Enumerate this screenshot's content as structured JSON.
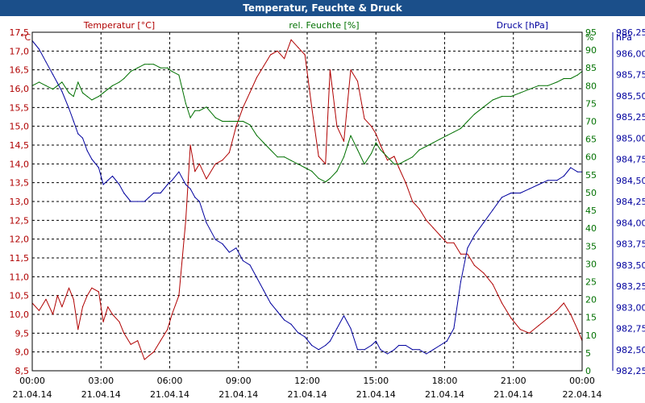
{
  "window": {
    "title": "Temperatur, Feuchte & Druck"
  },
  "chart_data": {
    "type": "line",
    "title": "Temperatur, Feuchte & Druck",
    "colors": {
      "temperature": "#b00000",
      "humidity": "#007000",
      "pressure": "#00009e",
      "grid": "#000000",
      "titlebar": "#1b4f8a"
    },
    "x_ticks": [
      {
        "time": "00:00",
        "date": "21.04.14"
      },
      {
        "time": "03:00",
        "date": "21.04.14"
      },
      {
        "time": "06:00",
        "date": "21.04.14"
      },
      {
        "time": "09:00",
        "date": "21.04.14"
      },
      {
        "time": "12:00",
        "date": "21.04.14"
      },
      {
        "time": "15:00",
        "date": "21.04.14"
      },
      {
        "time": "18:00",
        "date": "21.04.14"
      },
      {
        "time": "21:00",
        "date": "21.04.14"
      },
      {
        "time": "00:00",
        "date": "22.04.14"
      }
    ],
    "xlim_hours": [
      0,
      24
    ],
    "axes": {
      "temperature": {
        "label": "Temperatur [°C]",
        "unit": "°C",
        "ylim": [
          8.5,
          17.5
        ],
        "ticks": [
          "8,5",
          "9,0",
          "9,5",
          "10,0",
          "10,5",
          "11,0",
          "11,5",
          "12,0",
          "12,5",
          "13,0",
          "13,5",
          "14,0",
          "14,5",
          "15,0",
          "15,5",
          "16,0",
          "16,5",
          "17,0",
          "17,5"
        ]
      },
      "humidity": {
        "label": "rel. Feuchte [%]",
        "unit": "%",
        "ylim": [
          0,
          95
        ],
        "ticks": [
          "0",
          "5",
          "10",
          "15",
          "20",
          "25",
          "30",
          "35",
          "40",
          "45",
          "50",
          "55",
          "60",
          "65",
          "70",
          "75",
          "80",
          "85",
          "90",
          "95"
        ]
      },
      "pressure": {
        "label": "Druck [hPa]",
        "unit": "hPa",
        "ylim": [
          982.25,
          986.25
        ],
        "ticks": [
          "982,25",
          "982,50",
          "982,75",
          "983,00",
          "983,25",
          "983,50",
          "983,75",
          "984,00",
          "984,25",
          "984,50",
          "984,75",
          "985,00",
          "985,25",
          "985,50",
          "985,75",
          "986,00",
          "986,25"
        ]
      }
    },
    "series": [
      {
        "name": "Temperatur [°C]",
        "axis": "temperature",
        "x": [
          0,
          0.3,
          0.6,
          0.9,
          1.1,
          1.3,
          1.6,
          1.8,
          2.0,
          2.2,
          2.4,
          2.6,
          2.9,
          3.1,
          3.3,
          3.5,
          3.8,
          4.0,
          4.3,
          4.6,
          4.9,
          5.1,
          5.3,
          5.6,
          5.9,
          6.1,
          6.4,
          6.7,
          6.9,
          7.1,
          7.3,
          7.6,
          8.0,
          8.3,
          8.6,
          8.9,
          9.2,
          9.5,
          9.8,
          10.1,
          10.4,
          10.7,
          11.0,
          11.3,
          11.6,
          11.9,
          12.2,
          12.5,
          12.8,
          13.0,
          13.3,
          13.6,
          13.9,
          14.2,
          14.5,
          14.8,
          15.0,
          15.2,
          15.5,
          15.8,
          16.0,
          16.3,
          16.6,
          16.9,
          17.2,
          17.5,
          17.8,
          18.1,
          18.4,
          18.7,
          19.0,
          19.3,
          19.7,
          20.1,
          20.5,
          20.9,
          21.3,
          21.7,
          22.1,
          22.5,
          22.9,
          23.2,
          23.5,
          23.8,
          24.0
        ],
        "values": [
          10.3,
          10.1,
          10.4,
          10.0,
          10.5,
          10.2,
          10.7,
          10.4,
          9.6,
          10.2,
          10.5,
          10.7,
          10.6,
          9.8,
          10.2,
          10.0,
          9.8,
          9.5,
          9.2,
          9.3,
          8.8,
          8.9,
          9.0,
          9.3,
          9.6,
          10.0,
          10.5,
          12.5,
          14.5,
          13.8,
          14.0,
          13.6,
          14.0,
          14.1,
          14.3,
          15.0,
          15.5,
          15.9,
          16.3,
          16.6,
          16.9,
          17.0,
          16.8,
          17.3,
          17.1,
          16.9,
          15.5,
          14.2,
          14.0,
          16.5,
          15.0,
          14.6,
          16.5,
          16.2,
          15.2,
          15.0,
          14.8,
          14.5,
          14.1,
          14.2,
          13.9,
          13.5,
          13.0,
          12.8,
          12.5,
          12.3,
          12.1,
          11.9,
          11.9,
          11.6,
          11.6,
          11.3,
          11.1,
          10.8,
          10.3,
          9.9,
          9.6,
          9.5,
          9.7,
          9.9,
          10.1,
          10.3,
          10.0,
          9.6,
          9.3
        ]
      },
      {
        "name": "rel. Feuchte [%]",
        "axis": "humidity",
        "x": [
          0,
          0.3,
          0.6,
          0.9,
          1.1,
          1.3,
          1.6,
          1.8,
          2.0,
          2.2,
          2.4,
          2.6,
          2.9,
          3.1,
          3.3,
          3.5,
          3.8,
          4.0,
          4.3,
          4.6,
          4.9,
          5.1,
          5.3,
          5.6,
          5.9,
          6.1,
          6.4,
          6.7,
          6.9,
          7.1,
          7.3,
          7.6,
          8.0,
          8.3,
          8.6,
          8.9,
          9.2,
          9.5,
          9.8,
          10.1,
          10.4,
          10.7,
          11.0,
          11.3,
          11.6,
          11.9,
          12.2,
          12.5,
          12.8,
          13.0,
          13.3,
          13.6,
          13.9,
          14.2,
          14.5,
          14.8,
          15.0,
          15.2,
          15.5,
          15.8,
          16.0,
          16.3,
          16.6,
          16.9,
          17.2,
          17.5,
          17.8,
          18.1,
          18.4,
          18.7,
          19.0,
          19.3,
          19.7,
          20.1,
          20.5,
          20.9,
          21.3,
          21.7,
          22.1,
          22.5,
          22.9,
          23.2,
          23.5,
          23.8,
          24.0
        ],
        "values": [
          80,
          81,
          80,
          79,
          80,
          81,
          78,
          77,
          81,
          78,
          77,
          76,
          77,
          78,
          79,
          80,
          81,
          82,
          84,
          85,
          86,
          86,
          86,
          85,
          85,
          84,
          83,
          75,
          71,
          73,
          73,
          74,
          71,
          70,
          70,
          70,
          70,
          69,
          66,
          64,
          62,
          60,
          60,
          59,
          58,
          57,
          56,
          54,
          53,
          54,
          56,
          60,
          66,
          62,
          58,
          61,
          64,
          62,
          60,
          58,
          58,
          59,
          60,
          62,
          63,
          64,
          65,
          66,
          67,
          68,
          70,
          72,
          74,
          76,
          77,
          77,
          78,
          79,
          80,
          80,
          81,
          82,
          82,
          83,
          84
        ]
      },
      {
        "name": "Druck [hPa]",
        "axis": "pressure",
        "x": [
          0,
          0.3,
          0.6,
          0.9,
          1.1,
          1.3,
          1.6,
          1.8,
          2.0,
          2.2,
          2.4,
          2.6,
          2.9,
          3.1,
          3.3,
          3.5,
          3.8,
          4.0,
          4.3,
          4.6,
          4.9,
          5.1,
          5.3,
          5.6,
          5.9,
          6.1,
          6.4,
          6.7,
          6.9,
          7.1,
          7.3,
          7.6,
          8.0,
          8.3,
          8.6,
          8.9,
          9.2,
          9.5,
          9.8,
          10.1,
          10.4,
          10.7,
          11.0,
          11.3,
          11.6,
          11.9,
          12.2,
          12.5,
          12.8,
          13.0,
          13.3,
          13.6,
          13.9,
          14.2,
          14.5,
          14.8,
          15.0,
          15.2,
          15.5,
          15.8,
          16.0,
          16.3,
          16.6,
          16.9,
          17.2,
          17.5,
          17.8,
          18.1,
          18.4,
          18.7,
          19.0,
          19.3,
          19.7,
          20.1,
          20.5,
          20.9,
          21.3,
          21.7,
          22.1,
          22.5,
          22.9,
          23.2,
          23.5,
          23.8,
          24.0
        ],
        "values": [
          986.15,
          986.05,
          985.9,
          985.75,
          985.65,
          985.55,
          985.35,
          985.2,
          985.05,
          985.0,
          984.85,
          984.75,
          984.65,
          984.45,
          984.5,
          984.55,
          984.45,
          984.35,
          984.25,
          984.25,
          984.25,
          984.3,
          984.35,
          984.35,
          984.45,
          984.5,
          984.6,
          984.45,
          984.4,
          984.3,
          984.25,
          984.0,
          983.8,
          983.75,
          983.65,
          983.7,
          983.55,
          983.5,
          983.35,
          983.2,
          983.05,
          982.95,
          982.85,
          982.8,
          982.7,
          982.65,
          982.55,
          982.5,
          982.55,
          982.6,
          982.75,
          982.9,
          982.75,
          982.5,
          982.5,
          982.55,
          982.6,
          982.5,
          982.45,
          982.5,
          982.55,
          982.55,
          982.5,
          982.5,
          982.45,
          982.5,
          982.55,
          982.6,
          982.75,
          983.3,
          983.7,
          983.85,
          984.0,
          984.15,
          984.3,
          984.35,
          984.35,
          984.4,
          984.45,
          984.5,
          984.5,
          984.55,
          984.65,
          984.6,
          984.6
        ]
      }
    ]
  }
}
